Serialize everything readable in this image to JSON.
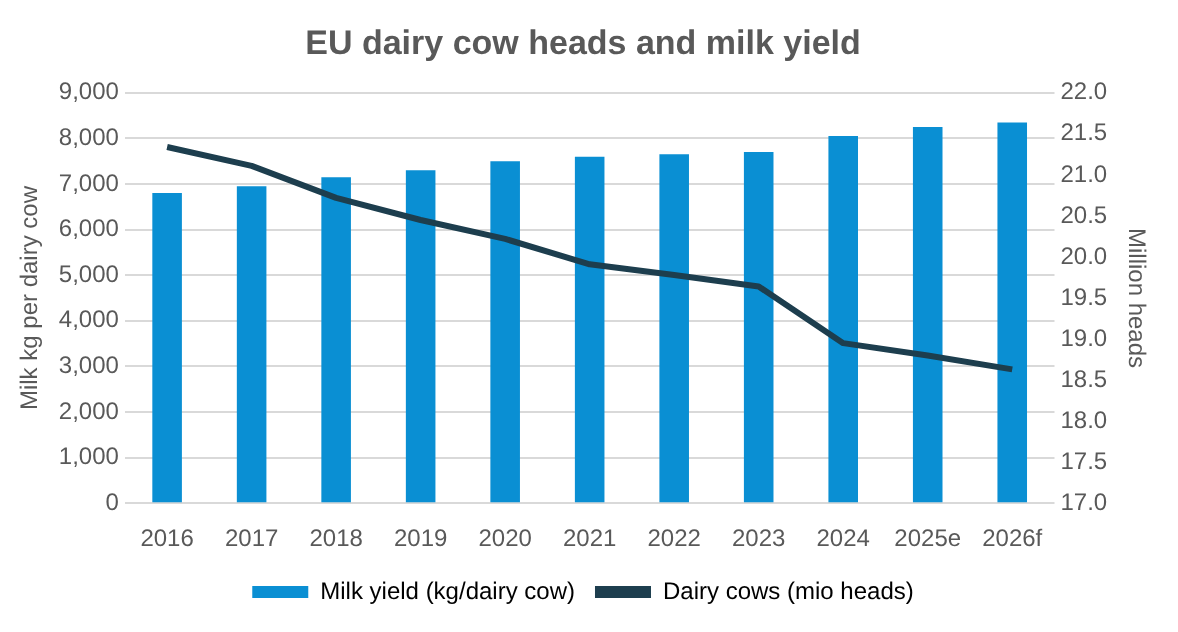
{
  "chart_data": {
    "type": "bar",
    "title": "EU dairy cow heads and milk yield",
    "ylabel": "Milk kg per dairy cow",
    "y2label": "Million heads",
    "categories": [
      "2016",
      "2017",
      "2018",
      "2019",
      "2020",
      "2021",
      "2022",
      "2023",
      "2024",
      "2025e",
      "2026f"
    ],
    "series": [
      {
        "name": "Milk yield (kg/dairy cow)",
        "color": "#0a8fd3",
        "values": [
          6800,
          6950,
          7150,
          7300,
          7500,
          7600,
          7650,
          7700,
          8050,
          8250,
          8350
        ]
      },
      {
        "name": "Dairy cows (mio heads)",
        "type": "line",
        "axis": "y2",
        "color": "#1d3e4e",
        "values": [
          21.34,
          21.11,
          20.72,
          20.45,
          20.22,
          19.91,
          19.78,
          19.64,
          18.95,
          18.8,
          18.63
        ]
      }
    ],
    "ylim": [
      0,
      9000
    ],
    "yticks": [
      {
        "value": 0,
        "label": "0"
      },
      {
        "value": 1000,
        "label": "1,000"
      },
      {
        "value": 2000,
        "label": "2,000"
      },
      {
        "value": 3000,
        "label": "3,000"
      },
      {
        "value": 4000,
        "label": "4,000"
      },
      {
        "value": 5000,
        "label": "5,000"
      },
      {
        "value": 6000,
        "label": "6,000"
      },
      {
        "value": 7000,
        "label": "7,000"
      },
      {
        "value": 8000,
        "label": "8,000"
      },
      {
        "value": 9000,
        "label": "9,000"
      }
    ],
    "y2lim": [
      17,
      22
    ],
    "y2ticks": [
      {
        "value": 17,
        "label": "17.0"
      },
      {
        "value": 17.5,
        "label": "17.5"
      },
      {
        "value": 18,
        "label": "18.0"
      },
      {
        "value": 18.5,
        "label": "18.5"
      },
      {
        "value": 19,
        "label": "19.0"
      },
      {
        "value": 19.5,
        "label": "19.5"
      },
      {
        "value": 20,
        "label": "20.0"
      },
      {
        "value": 20.5,
        "label": "20.5"
      },
      {
        "value": 21,
        "label": "21.0"
      },
      {
        "value": 21.5,
        "label": "21.5"
      },
      {
        "value": 22,
        "label": "22.0"
      }
    ],
    "grid": "y",
    "legend": "bottom",
    "marker": "none"
  }
}
